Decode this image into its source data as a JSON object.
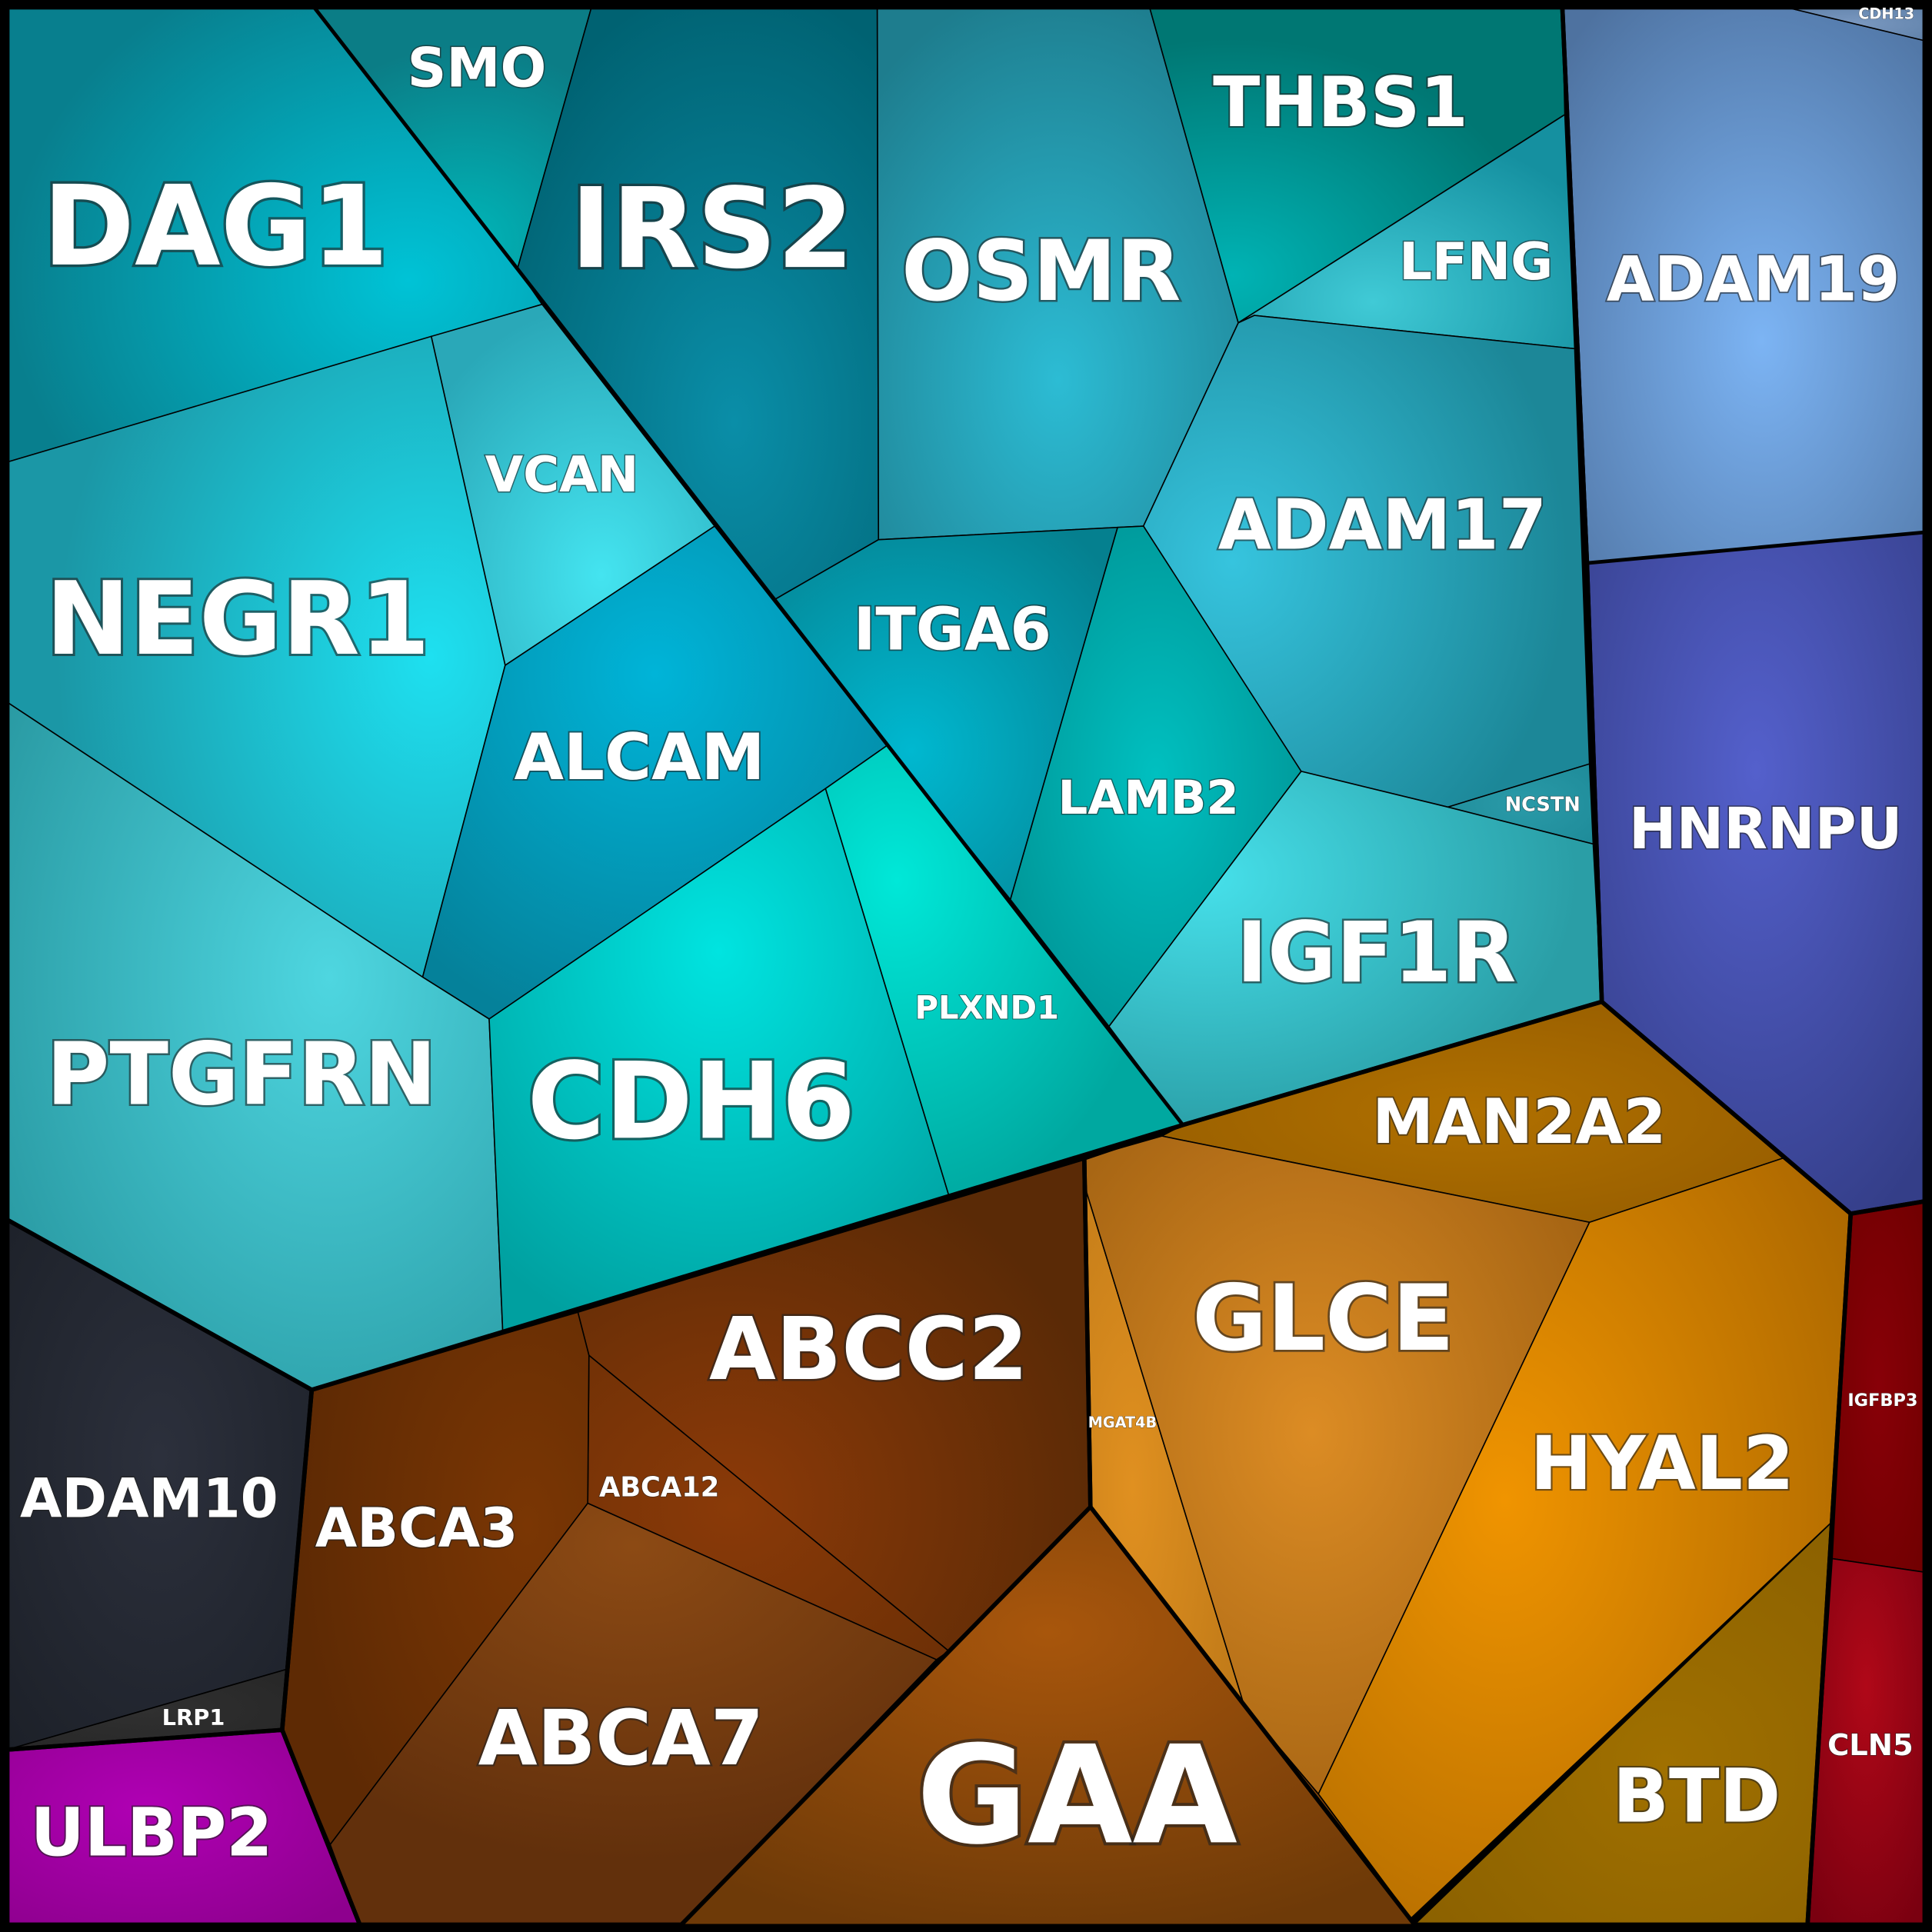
{
  "cells": [
    {
      "label": "DAG1"
    },
    {
      "label": "SMO"
    },
    {
      "label": "IRS2"
    },
    {
      "label": "OSMR"
    },
    {
      "label": "THBS1"
    },
    {
      "label": "LFNG"
    },
    {
      "label": "ADAM17"
    },
    {
      "label": "NCSTN"
    },
    {
      "label": "IGF1R"
    },
    {
      "label": "LAMB2"
    },
    {
      "label": "ITGA6"
    },
    {
      "label": "VCAN"
    },
    {
      "label": "NEGR1"
    },
    {
      "label": "ALCAM"
    },
    {
      "label": "PTGFRN"
    },
    {
      "label": "CDH6"
    },
    {
      "label": "PLXND1"
    },
    {
      "label": "ADAM19"
    },
    {
      "label": "CDH13"
    },
    {
      "label": "HNRNPU"
    },
    {
      "label": "MAN2A2"
    },
    {
      "label": "MGAT4B"
    },
    {
      "label": "GLCE"
    },
    {
      "label": "HYAL2"
    },
    {
      "label": "BTD"
    },
    {
      "label": "GAA"
    },
    {
      "label": "ABCC2"
    },
    {
      "label": "ABCA12"
    },
    {
      "label": "ABCA3"
    },
    {
      "label": "ABCA7"
    },
    {
      "label": "IGFBP3"
    },
    {
      "label": "CLN5"
    },
    {
      "label": "ADAM10"
    },
    {
      "label": "LRP1"
    },
    {
      "label": "ULBP2"
    }
  ]
}
